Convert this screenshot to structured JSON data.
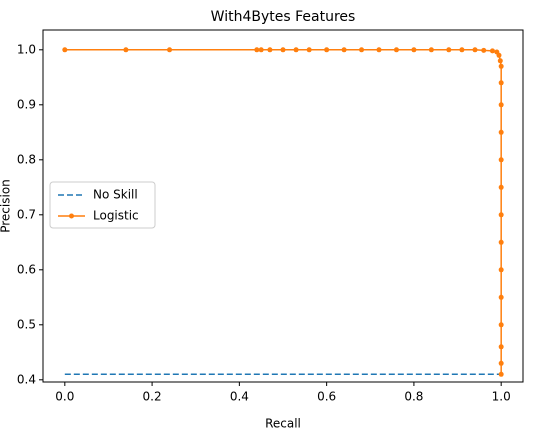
{
  "chart_data": {
    "type": "line",
    "title": "With4Bytes Features",
    "xlabel": "Recall",
    "ylabel": "Precision",
    "xlim": [
      -0.05,
      1.05
    ],
    "ylim": [
      0.396,
      1.036
    ],
    "xticks": [
      {
        "value": 0,
        "label": "0.0"
      },
      0.2,
      0.4,
      0.6,
      0.8,
      {
        "value": 1,
        "label": "1.0"
      }
    ],
    "yticks": [
      0.4,
      0.5,
      0.6,
      0.7,
      0.8,
      0.9,
      {
        "value": 1,
        "label": "1.0"
      }
    ],
    "legend": "center left",
    "grid": false,
    "series": [
      {
        "name": "No Skill",
        "color": "#1f77b4",
        "linestyle": "dashed",
        "marker": "none",
        "x": [
          0,
          1
        ],
        "values": [
          0.41,
          0.41
        ]
      },
      {
        "name": "Logistic",
        "color": "#ff7f0e",
        "linestyle": "solid",
        "marker": "o",
        "x": [
          0,
          0.14,
          0.24,
          0.44,
          0.45,
          0.47,
          0.5,
          0.53,
          0.56,
          0.6,
          0.64,
          0.68,
          0.72,
          0.76,
          0.8,
          0.84,
          0.88,
          0.91,
          0.94,
          0.96,
          0.98,
          0.99,
          0.995,
          0.998,
          1,
          1,
          1,
          1,
          1,
          1,
          1,
          1,
          1,
          1,
          1,
          1,
          1,
          1
        ],
        "values": [
          1,
          1,
          1,
          1,
          1,
          1,
          1,
          1,
          1,
          1,
          1,
          1,
          1,
          1,
          1,
          1,
          1,
          1,
          1,
          0.999,
          0.998,
          0.996,
          0.99,
          0.98,
          0.97,
          0.94,
          0.9,
          0.85,
          0.8,
          0.75,
          0.7,
          0.65,
          0.6,
          0.55,
          0.5,
          0.46,
          0.43,
          0.41
        ]
      }
    ]
  }
}
